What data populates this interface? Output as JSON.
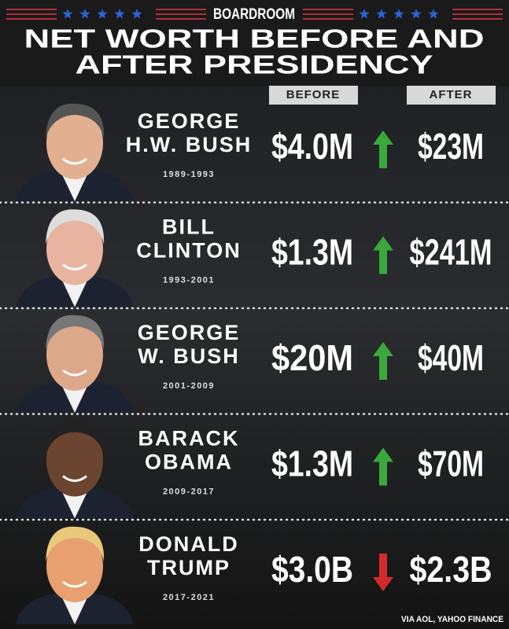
{
  "header": {
    "brand": "BOARDROOM",
    "title": [
      "NET WORTH BEFORE AND",
      "AFTER PRESIDENCY"
    ]
  },
  "columns": {
    "before": "BEFORE",
    "after": "AFTER"
  },
  "rows": [
    {
      "name": [
        "GEORGE",
        "H.W. BUSH"
      ],
      "years": "1989-1993",
      "before": "$4.0M",
      "after": "$23M",
      "trend": "up"
    },
    {
      "name": [
        "BILL",
        "CLINTON"
      ],
      "years": "1993-2001",
      "before": "$1.3M",
      "after": "$241M",
      "trend": "up"
    },
    {
      "name": [
        "GEORGE",
        "W. BUSH"
      ],
      "years": "2001-2009",
      "before": "$20M",
      "after": "$40M",
      "trend": "up"
    },
    {
      "name": [
        "BARACK",
        "OBAMA"
      ],
      "years": "2009-2017",
      "before": "$1.3M",
      "after": "$70M",
      "trend": "up"
    },
    {
      "name": [
        "DONALD",
        "TRUMP"
      ],
      "years": "2017-2021",
      "before": "$3.0B",
      "after": "$2.3B",
      "trend": "down"
    }
  ],
  "source": "VIA AOL, YAHOO FINANCE"
}
